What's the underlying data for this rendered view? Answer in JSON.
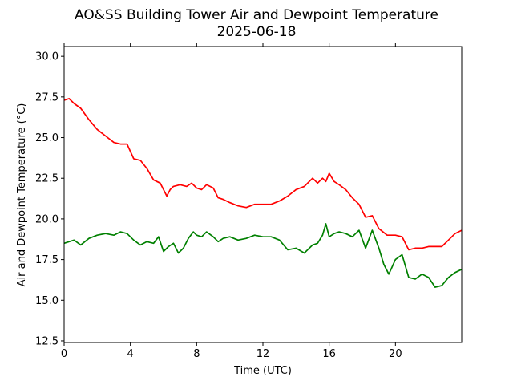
{
  "chart_data": {
    "type": "line",
    "title": "AO&SS Building Tower Air and Dewpoint Temperature",
    "subtitle": "2025-06-18",
    "xlabel": "Time (UTC)",
    "ylabel": "Air and Dewpoint Temperature (°C)",
    "xlim": [
      0,
      24
    ],
    "ylim": [
      12.4,
      30.6
    ],
    "xticks": [
      0,
      4,
      8,
      12,
      16,
      20
    ],
    "yticks": [
      12.5,
      15.0,
      17.5,
      20.0,
      22.5,
      25.0,
      27.5,
      30.0
    ],
    "grid": false,
    "colors": {
      "air": "#ff0000",
      "dewpoint": "#008000"
    },
    "series": [
      {
        "color": "#ff0000",
        "x": [
          0,
          0.3,
          0.6,
          1.0,
          1.5,
          2.0,
          2.5,
          3.0,
          3.4,
          3.8,
          4.2,
          4.6,
          5.0,
          5.4,
          5.8,
          6.2,
          6.4,
          6.6,
          7.0,
          7.4,
          7.7,
          8.0,
          8.3,
          8.6,
          9.0,
          9.3,
          9.6,
          10.0,
          10.5,
          11.0,
          11.5,
          12.0,
          12.5,
          13.0,
          13.5,
          14.0,
          14.5,
          15.0,
          15.3,
          15.6,
          15.8,
          16.0,
          16.3,
          16.6,
          17.0,
          17.4,
          17.8,
          18.2,
          18.6,
          19.0,
          19.5,
          20.0,
          20.4,
          20.8,
          21.2,
          21.6,
          22.0,
          22.4,
          22.8,
          23.2,
          23.6,
          24.0
        ],
        "y": [
          27.3,
          27.4,
          27.1,
          26.8,
          26.1,
          25.5,
          25.1,
          24.7,
          24.6,
          24.6,
          23.7,
          23.6,
          23.1,
          22.4,
          22.2,
          21.4,
          21.8,
          22.0,
          22.1,
          22.0,
          22.2,
          21.9,
          21.8,
          22.1,
          21.9,
          21.3,
          21.2,
          21.0,
          20.8,
          20.7,
          20.9,
          20.9,
          20.9,
          21.1,
          21.4,
          21.8,
          22.0,
          22.5,
          22.2,
          22.5,
          22.3,
          22.8,
          22.3,
          22.1,
          21.8,
          21.3,
          20.9,
          20.1,
          20.2,
          19.4,
          19.0,
          19.0,
          18.9,
          18.1,
          18.2,
          18.2,
          18.3,
          18.3,
          18.3,
          18.7,
          19.1,
          19.3
        ]
      },
      {
        "color": "#008000",
        "x": [
          0,
          0.3,
          0.6,
          1.0,
          1.5,
          2.0,
          2.5,
          3.0,
          3.4,
          3.8,
          4.2,
          4.6,
          5.0,
          5.4,
          5.7,
          6.0,
          6.3,
          6.6,
          6.9,
          7.2,
          7.5,
          7.8,
          8.0,
          8.3,
          8.6,
          9.0,
          9.3,
          9.6,
          10.0,
          10.5,
          11.0,
          11.5,
          12.0,
          12.5,
          13.0,
          13.5,
          14.0,
          14.5,
          15.0,
          15.3,
          15.6,
          15.8,
          16.0,
          16.3,
          16.6,
          17.0,
          17.4,
          17.8,
          18.2,
          18.6,
          19.0,
          19.3,
          19.6,
          20.0,
          20.4,
          20.8,
          21.2,
          21.6,
          22.0,
          22.4,
          22.8,
          23.2,
          23.6,
          24.0
        ],
        "y": [
          18.5,
          18.6,
          18.7,
          18.4,
          18.8,
          19.0,
          19.1,
          19.0,
          19.2,
          19.1,
          18.7,
          18.4,
          18.6,
          18.5,
          18.9,
          18.0,
          18.3,
          18.5,
          17.9,
          18.2,
          18.8,
          19.2,
          19.0,
          18.9,
          19.2,
          18.9,
          18.6,
          18.8,
          18.9,
          18.7,
          18.8,
          19.0,
          18.9,
          18.9,
          18.7,
          18.1,
          18.2,
          17.9,
          18.4,
          18.5,
          19.0,
          19.7,
          18.9,
          19.1,
          19.2,
          19.1,
          18.9,
          19.3,
          18.2,
          19.3,
          18.2,
          17.2,
          16.6,
          17.5,
          17.8,
          16.4,
          16.3,
          16.6,
          16.4,
          15.8,
          15.9,
          16.4,
          16.7,
          16.9
        ]
      }
    ]
  }
}
